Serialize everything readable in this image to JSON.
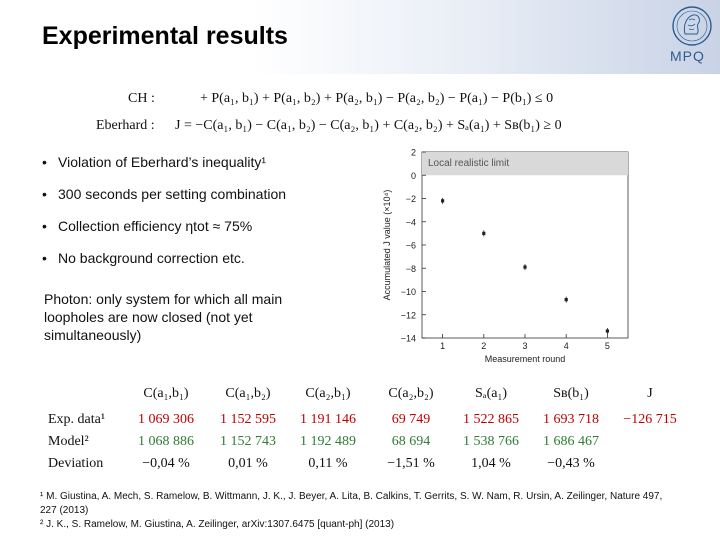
{
  "header": {
    "title": "Experimental results",
    "logo_text": "MPQ"
  },
  "equations": {
    "ch_label": "CH :",
    "ch_body": "+ P(a₁, b₁) + P(a₁, b₂) + P(a₂, b₁) − P(a₂, b₂) − P(a₁) − P(b₁)   ≤  0",
    "eberhard_label": "Eberhard :",
    "eberhard_body": "J = −C(a₁, b₁) − C(a₁, b₂) − C(a₂, b₁) + C(a₂, b₂) + Sₐ(a₁) + Sʙ(b₁)   ≥  0"
  },
  "bullets": [
    "Violation of Eberhard’s inequality¹",
    "300 seconds per setting combination",
    "Collection efficiency ηtot ≈ 75%",
    "No background correction etc."
  ],
  "photon_note": "Photon: only system for which all main loopholes are now closed (not yet simultaneously)",
  "chart_data": {
    "type": "scatter",
    "x": [
      1,
      2,
      3,
      4,
      5
    ],
    "y": [
      -2.2,
      -5.0,
      -7.9,
      -10.7,
      -13.4
    ],
    "xlabel": "Measurement round",
    "ylabel": "Accumulated J value (×10⁴)",
    "xticks": [
      "1",
      "2",
      "3",
      "4",
      "5"
    ],
    "yticks": [
      "2",
      "0",
      "−2",
      "−4",
      "−6",
      "−8",
      "−10",
      "−12",
      "−14"
    ],
    "xlim": [
      0.5,
      5.5
    ],
    "ylim": [
      -14,
      2
    ],
    "annotation": "Local realistic limit",
    "limit_value": 0
  },
  "table": {
    "headers": [
      "C(a₁,b₁)",
      "C(a₁,b₂)",
      "C(a₂,b₁)",
      "C(a₂,b₂)",
      "Sₐ(a₁)",
      "Sʙ(b₁)",
      "J"
    ],
    "rows": [
      {
        "label": "Exp. data¹",
        "values": [
          "1 069 306",
          "1 152 595",
          "1 191 146",
          "69 749",
          "1 522 865",
          "1 693 718",
          "−126 715"
        ]
      },
      {
        "label": "Model²",
        "values": [
          "1 068 886",
          "1 152 743",
          "1 192 489",
          "68 694",
          "1 538 766",
          "1 686 467",
          ""
        ]
      },
      {
        "label": "Deviation",
        "values": [
          "−0,04 %",
          "0,01 %",
          "0,11 %",
          "−1,51 %",
          "1,04 %",
          "−0,43 %",
          ""
        ]
      }
    ],
    "colors": {
      "exp": "#c00000",
      "model": "#2e7d32"
    }
  },
  "references": [
    "¹ M. Giustina, A. Mech, S. Ramelow, B. Wittmann, J. K., J. Beyer, A. Lita, B. Calkins, T. Gerrits, S. W. Nam, R. Ursin, A. Zeilinger, Nature 497, 227 (2013)",
    "² J. K., S. Ramelow, M. Giustina, A. Zeilinger, arXiv:1307.6475 [quant-ph] (2013)"
  ]
}
